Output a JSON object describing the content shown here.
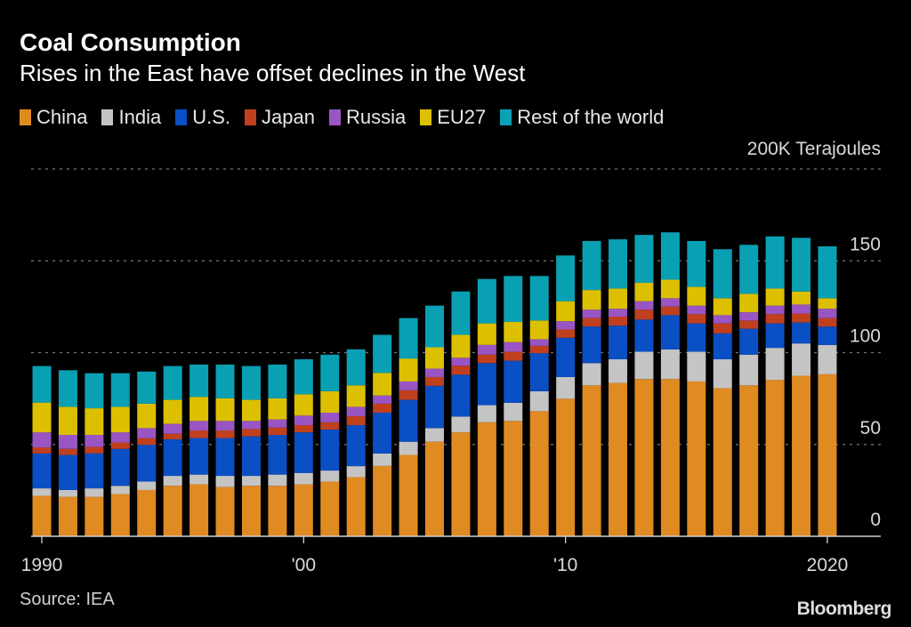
{
  "chart_data": {
    "type": "bar",
    "stacked": true,
    "title": "Coal Consumption",
    "subtitle": "Rises in the East have offset declines in the West",
    "unit_label": "200K Terajoules",
    "ylim": [
      0,
      200
    ],
    "yticks": [
      0,
      50,
      100,
      150
    ],
    "grid": true,
    "legend_position": "top-left",
    "x": [
      1990,
      1991,
      1992,
      1993,
      1994,
      1995,
      1996,
      1997,
      1998,
      1999,
      2000,
      2001,
      2002,
      2003,
      2004,
      2005,
      2006,
      2007,
      2008,
      2009,
      2010,
      2011,
      2012,
      2013,
      2014,
      2015,
      2016,
      2017,
      2018,
      2019,
      2020
    ],
    "xticks": [
      {
        "year": 1990,
        "label": "1990"
      },
      {
        "year": 2000,
        "label": "'00"
      },
      {
        "year": 2010,
        "label": "'10"
      },
      {
        "year": 2020,
        "label": "2020"
      }
    ],
    "series": [
      {
        "name": "China",
        "color": "#e08a22",
        "values": [
          22.0,
          21.5,
          21.5,
          23.0,
          25.2,
          27.5,
          28.3,
          26.8,
          27.5,
          27.5,
          28.3,
          29.8,
          32.2,
          38.3,
          44.3,
          51.5,
          56.6,
          62.1,
          62.8,
          68.1,
          74.9,
          82.2,
          83.5,
          85.6,
          85.6,
          84.3,
          80.6,
          82.2,
          85.1,
          87.4,
          88.2
        ]
      },
      {
        "name": "India",
        "color": "#c4c4c4",
        "values": [
          4.1,
          3.7,
          4.6,
          4.5,
          4.6,
          5.4,
          5.3,
          6.1,
          5.4,
          6.1,
          6.2,
          6.0,
          6.0,
          6.8,
          7.2,
          7.4,
          8.6,
          9.3,
          9.9,
          10.9,
          11.8,
          12.1,
          12.9,
          14.9,
          16.2,
          16.2,
          15.8,
          16.7,
          17.5,
          17.6,
          16.0
        ]
      },
      {
        "name": "U.S.",
        "color": "#0a4fc4",
        "values": [
          19.0,
          19.1,
          19.0,
          20.1,
          20.0,
          19.9,
          19.9,
          20.6,
          21.5,
          21.6,
          22.1,
          22.3,
          22.3,
          22.2,
          22.8,
          23.0,
          22.8,
          22.9,
          22.9,
          20.7,
          21.4,
          19.9,
          18.3,
          17.5,
          18.6,
          15.4,
          14.1,
          14.1,
          13.3,
          11.4,
          10.0
        ]
      },
      {
        "name": "Japan",
        "color": "#c0401e",
        "values": [
          3.3,
          3.3,
          3.6,
          3.5,
          3.6,
          3.0,
          4.1,
          4.1,
          4.0,
          4.0,
          3.9,
          4.0,
          4.9,
          4.9,
          5.2,
          4.8,
          4.9,
          4.6,
          4.9,
          4.0,
          4.5,
          4.6,
          4.9,
          5.4,
          4.7,
          5.1,
          5.4,
          4.5,
          5.1,
          4.9,
          4.6
        ]
      },
      {
        "name": "Russia",
        "color": "#9a55c4",
        "values": [
          8.2,
          7.6,
          6.5,
          5.5,
          5.5,
          5.4,
          5.2,
          5.2,
          4.4,
          4.4,
          5.2,
          5.2,
          5.1,
          4.5,
          4.8,
          4.6,
          4.3,
          5.3,
          5.2,
          3.6,
          4.5,
          4.6,
          4.3,
          4.6,
          4.5,
          4.6,
          4.5,
          4.5,
          4.6,
          4.9,
          5.1
        ]
      },
      {
        "name": "EU27",
        "color": "#dcc000",
        "values": [
          16.2,
          15.3,
          14.5,
          13.9,
          13.3,
          13.1,
          13.1,
          12.3,
          11.5,
          11.5,
          11.6,
          11.7,
          11.7,
          12.3,
          12.5,
          11.6,
          12.5,
          11.7,
          11.0,
          10.2,
          10.9,
          10.7,
          11.0,
          10.0,
          10.1,
          10.2,
          9.2,
          10.0,
          9.3,
          7.1,
          5.7
        ]
      },
      {
        "name": "Rest of the world",
        "color": "#0aa0b4",
        "values": [
          19.9,
          19.9,
          19.1,
          18.3,
          17.5,
          18.4,
          17.6,
          18.4,
          18.4,
          18.4,
          19.1,
          19.9,
          19.6,
          20.7,
          22.0,
          22.7,
          23.6,
          24.2,
          25.0,
          24.2,
          24.9,
          26.7,
          26.8,
          26.1,
          25.8,
          25.0,
          26.7,
          26.7,
          28.4,
          29.2,
          28.3
        ]
      }
    ]
  },
  "footer": {
    "source": "Source: IEA",
    "brand": "Bloomberg"
  }
}
